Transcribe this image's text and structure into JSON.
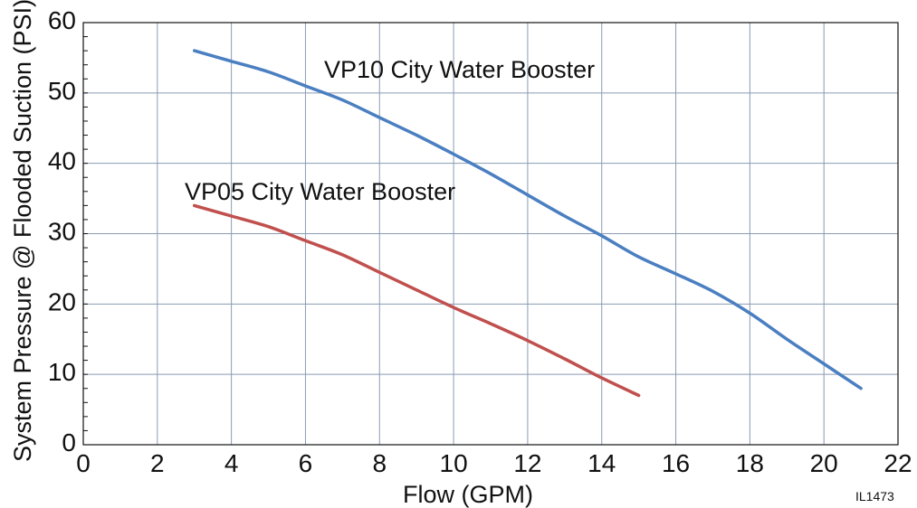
{
  "chart_data": {
    "type": "line",
    "title": "",
    "xlabel": "Flow (GPM)",
    "ylabel": "System Pressure @ Flooded Suction (PSI)",
    "xlim": [
      0,
      22
    ],
    "ylim": [
      0,
      60
    ],
    "xticks": [
      0,
      2,
      4,
      6,
      8,
      10,
      12,
      14,
      16,
      18,
      20,
      22
    ],
    "yticks": [
      0,
      10,
      20,
      30,
      40,
      50,
      60
    ],
    "grid": true,
    "legend": "inline labels",
    "series": [
      {
        "name": "VP10 City Water Booster",
        "color": "#4a7fc1",
        "x": [
          3,
          4,
          5,
          6,
          7,
          8,
          9,
          10,
          11,
          12,
          13,
          14,
          15,
          16,
          17,
          18,
          19,
          20,
          21
        ],
        "y": [
          56,
          54.5,
          53,
          51,
          49,
          46.5,
          44,
          41.3,
          38.5,
          35.5,
          32.5,
          29.7,
          26.7,
          24.3,
          21.8,
          18.7,
          15,
          11.5,
          8
        ]
      },
      {
        "name": "VP05 City Water Booster",
        "color": "#c0504d",
        "x": [
          3,
          4,
          5,
          6,
          7,
          8,
          9,
          10,
          11,
          12,
          13,
          14,
          15
        ],
        "y": [
          34,
          32.5,
          31,
          29,
          27,
          24.5,
          22,
          19.5,
          17.2,
          14.8,
          12.2,
          9.5,
          7
        ]
      }
    ]
  },
  "figure_code": "IL1473"
}
